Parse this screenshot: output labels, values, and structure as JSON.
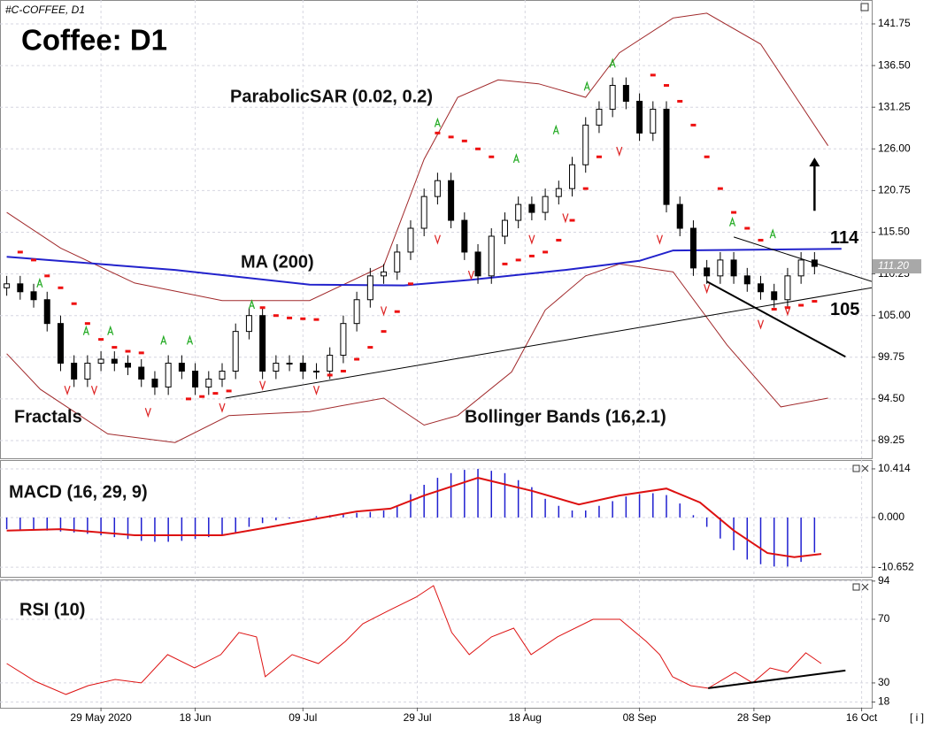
{
  "ui": {
    "info": "[ i ]"
  },
  "chart_data": [
    {
      "type": "candlestick",
      "symbol": "#C-COFFEE, D1",
      "title": "Coffee: D1",
      "xlim": [
        -1,
        128.5
      ],
      "ylim": [
        87.02,
        144.76
      ],
      "grid": true,
      "yticks": [
        {
          "value": 141.75,
          "label": "141.75"
        },
        {
          "value": 136.5,
          "label": "136.50"
        },
        {
          "value": 131.25,
          "label": "131.25"
        },
        {
          "value": 126,
          "label": "126.00"
        },
        {
          "value": 120.75,
          "label": "120.75"
        },
        {
          "value": 115.5,
          "label": "115.50"
        },
        {
          "value": 110.25,
          "label": "110.25"
        },
        {
          "value": 105,
          "label": "105.00"
        },
        {
          "value": 99.75,
          "label": "99.75"
        },
        {
          "value": 94.5,
          "label": "94.50"
        },
        {
          "value": 89.25,
          "label": "89.25"
        }
      ],
      "last_price": {
        "value": 111.2,
        "label": "111.20"
      },
      "x": [
        0,
        2,
        4,
        6,
        8,
        10,
        12,
        14,
        16,
        18,
        20,
        22,
        24,
        26,
        28,
        30,
        32,
        34,
        36,
        38,
        40,
        42,
        44,
        46,
        48,
        50,
        52,
        54,
        56,
        58,
        60,
        62,
        64,
        66,
        68,
        70,
        72,
        74,
        76,
        78,
        80,
        82,
        84,
        86,
        88,
        90,
        92,
        94,
        96,
        98,
        100,
        102,
        104,
        106,
        108,
        110,
        112,
        114,
        116,
        118,
        120
      ],
      "open": [
        108.5,
        109,
        108,
        107,
        104,
        99,
        97,
        99,
        99.5,
        99,
        98.5,
        97,
        96,
        99,
        98,
        96,
        97,
        98,
        103,
        105,
        98,
        99,
        99,
        98,
        98,
        100,
        104,
        107,
        110,
        110.5,
        113,
        116,
        120,
        122,
        117,
        113,
        110,
        115,
        117,
        119,
        118,
        120,
        121,
        124,
        129,
        131,
        134,
        132,
        128,
        131,
        119,
        116,
        111,
        110,
        112,
        110,
        109,
        108,
        107,
        110,
        112
      ],
      "high": [
        110,
        110,
        109,
        108,
        105,
        100,
        100,
        100.5,
        100.5,
        100,
        99.5,
        98,
        100,
        100,
        99,
        98,
        99,
        104,
        106,
        106,
        100,
        100,
        100,
        99,
        101,
        105,
        108,
        111,
        111.5,
        114,
        117,
        121,
        123,
        123,
        118,
        114,
        116,
        118,
        120,
        120,
        121,
        122,
        125,
        130,
        132,
        135,
        135,
        133,
        132,
        132,
        120,
        117,
        112,
        113,
        113,
        111,
        110,
        109,
        111,
        113,
        113
      ],
      "low": [
        107.5,
        107,
        106,
        103,
        98,
        96,
        96,
        98,
        98,
        97.5,
        96,
        95,
        95,
        97,
        95,
        95,
        96,
        97,
        102,
        97,
        97,
        98,
        97,
        97,
        97,
        99,
        103,
        106,
        109,
        109.5,
        112,
        115,
        119,
        116,
        112,
        109,
        109,
        114,
        116,
        117,
        117,
        119,
        120,
        123,
        128,
        130,
        131,
        127,
        127,
        118,
        115,
        110,
        109,
        109,
        109,
        108,
        107,
        106,
        106,
        109,
        110.2
      ],
      "close": [
        109,
        108,
        107,
        104,
        99,
        97,
        99,
        99.5,
        99,
        98.5,
        97,
        96,
        99,
        98,
        96,
        97,
        98,
        103,
        105,
        98,
        99,
        99,
        98,
        98,
        100,
        104,
        107,
        110,
        110.5,
        113,
        116,
        120,
        122,
        117,
        113,
        110,
        115,
        117,
        119,
        118,
        120,
        121,
        124,
        129,
        131,
        134,
        132,
        128,
        131,
        119,
        116,
        111,
        110,
        112,
        110,
        109,
        108,
        107,
        110,
        112,
        111.2
      ],
      "ma": {
        "name": "MA (200)",
        "color": "#2222cc",
        "x": [
          0,
          25,
          45,
          59,
          69,
          83,
          94,
          99,
          124
        ],
        "values": [
          112.4,
          110.75,
          108.9,
          108.8,
          109.5,
          110.75,
          111.9,
          113.2,
          113.4
        ]
      },
      "bollinger": {
        "name": "Bollinger Bands (16,2.1)",
        "color": "#a0282a",
        "upper": {
          "x": [
            0,
            8,
            19,
            32,
            45,
            56,
            62,
            67,
            73,
            79,
            86,
            91,
            99,
            104,
            112,
            122
          ],
          "values": [
            118,
            113.5,
            109.1,
            106.9,
            106.9,
            111.3,
            124.7,
            132.5,
            134.7,
            134.2,
            132.5,
            138.1,
            142.5,
            143.1,
            139.2,
            126.4
          ]
        },
        "lower": {
          "x": [
            0,
            5,
            15,
            25,
            33,
            45,
            56,
            62,
            67,
            75,
            80,
            86,
            91,
            99,
            107,
            115,
            122
          ],
          "values": [
            100.2,
            95.7,
            90.1,
            89,
            92.4,
            92.9,
            94.6,
            91.2,
            92.4,
            97.9,
            105.7,
            110,
            111.5,
            110.5,
            101.3,
            93.5,
            94.6
          ]
        }
      },
      "sar": {
        "name": "ParabolicSAR (0.02, 0.2)",
        "color": "#ee1111",
        "x": [
          2,
          4,
          6,
          8,
          10,
          12,
          14,
          16,
          18,
          20,
          27,
          29,
          31,
          33,
          38,
          40,
          42,
          44,
          46,
          48,
          50,
          52,
          54,
          56,
          58,
          60,
          64,
          66,
          68,
          70,
          72,
          74,
          76,
          78,
          80,
          82,
          84,
          86,
          88,
          96,
          98,
          100,
          102,
          104,
          106,
          108,
          110,
          112,
          114,
          116,
          118,
          120
        ],
        "values": [
          113,
          112,
          110,
          108.5,
          106.5,
          104,
          102,
          101,
          100.5,
          100.3,
          94.5,
          94.8,
          95.2,
          95.5,
          106,
          105,
          104.7,
          104.6,
          104.5,
          97.5,
          98,
          99.5,
          101,
          103,
          105.5,
          109,
          128,
          127.5,
          127,
          126,
          125,
          111.5,
          112,
          112.5,
          113,
          114.5,
          117,
          121,
          125,
          135.3,
          134,
          132,
          129,
          125,
          121,
          118,
          116,
          114.5,
          105.8,
          106,
          106.3,
          106.8
        ]
      },
      "fractals": {
        "name": "Fractals",
        "up": {
          "color": "#22aa22",
          "x": [
            4.9,
            11.8,
            15.4,
            23.3,
            27.2,
            36.4,
            64,
            75.7,
            81.6,
            86.2,
            90,
            107.8,
            113.8
          ],
          "values": [
            109,
            103,
            103,
            101.8,
            101.8,
            106.3,
            129.2,
            124.7,
            128.3,
            133.8,
            136.7,
            116.7,
            115.2
          ]
        },
        "down": {
          "color": "#dd2222",
          "x": [
            9,
            13,
            21,
            32,
            38,
            46,
            56,
            64,
            69,
            78,
            83,
            91,
            97,
            104,
            112,
            116
          ],
          "values": [
            95.7,
            95.7,
            92.9,
            93.5,
            96.3,
            95.7,
            105.7,
            114.7,
            110.2,
            114.7,
            117.4,
            125.8,
            114.7,
            108.5,
            104,
            105.7
          ]
        }
      },
      "trendlines": [
        {
          "x": [
            32.5,
            128.5
          ],
          "values": [
            94.6,
            108.5
          ],
          "width": 1
        },
        {
          "x": [
            108,
            128.5
          ],
          "values": [
            114.9,
            109.3
          ],
          "width": 1
        },
        {
          "x": [
            104,
            124.6
          ],
          "values": [
            109.3,
            99.8
          ],
          "width": 2
        }
      ],
      "arrow": {
        "x": [
          120,
          120
        ],
        "values": [
          118.2,
          124.9
        ]
      },
      "levels": [
        114,
        105
      ]
    },
    {
      "type": "macd",
      "name": "MACD (16, 29, 9)",
      "xlim": [
        -1,
        128.5
      ],
      "ylim": [
        -12.7,
        12.3
      ],
      "yticks": [
        10.414,
        {
          "value": 0,
          "label": "0.000"
        },
        -10.652
      ],
      "x": [
        0,
        2,
        4,
        6,
        8,
        10,
        12,
        14,
        16,
        18,
        20,
        22,
        24,
        26,
        28,
        30,
        32,
        34,
        36,
        38,
        40,
        42,
        44,
        46,
        48,
        50,
        52,
        54,
        56,
        58,
        60,
        62,
        64,
        66,
        68,
        70,
        72,
        74,
        76,
        78,
        80,
        82,
        84,
        86,
        88,
        90,
        92,
        94,
        96,
        98,
        100,
        102,
        104,
        106,
        108,
        110,
        112,
        114,
        116,
        118,
        120
      ],
      "histogram": {
        "color": "#1f1fd0",
        "values": [
          -2.5,
          -2.6,
          -2.7,
          -2.8,
          -3,
          -3.2,
          -3.5,
          -3.8,
          -4.2,
          -4.6,
          -5,
          -5.2,
          -5.2,
          -5,
          -4.6,
          -4.2,
          -3.8,
          -3.2,
          -2,
          -1.2,
          -0.6,
          -0.2,
          0,
          0.3,
          0.5,
          0.8,
          1,
          1.2,
          1.5,
          2.5,
          5,
          7,
          8.5,
          9.5,
          10.2,
          10.4,
          10,
          9.5,
          8,
          6.5,
          4,
          2.5,
          1.5,
          1.5,
          2.5,
          3.5,
          4.5,
          5,
          5.2,
          4.8,
          3,
          0.5,
          -2,
          -4.5,
          -7,
          -9,
          -10,
          -10.5,
          -10.5,
          -9.5,
          -7.5
        ]
      },
      "signal": {
        "color": "#dd1111",
        "x": [
          0,
          8,
          19,
          32,
          38,
          52,
          57,
          62,
          70,
          78,
          85,
          91,
          98,
          103,
          108,
          113,
          117,
          121
        ],
        "values": [
          -2.8,
          -2.5,
          -3.8,
          -3.8,
          -2.3,
          1.3,
          1.9,
          4.7,
          8.5,
          5.7,
          2.8,
          4.7,
          6.2,
          3.2,
          -2.8,
          -7.6,
          -8.5,
          -7.8
        ]
      }
    },
    {
      "type": "line",
      "name": "RSI (10)",
      "xlim": [
        -1,
        128.5
      ],
      "ylim": [
        14.4,
        95
      ],
      "color": "#dd1111",
      "yticks": [
        94,
        70,
        30,
        18
      ],
      "xticks": [
        {
          "value": 14,
          "label": "29 May 2020"
        },
        {
          "value": 28,
          "label": "18 Jun"
        },
        {
          "value": 44,
          "label": "09 Jul"
        },
        {
          "value": 61,
          "label": "29 Jul"
        },
        {
          "value": 77,
          "label": "18 Aug"
        },
        {
          "value": 94,
          "label": "08 Sep"
        },
        {
          "value": 111,
          "label": "28 Sep"
        },
        {
          "value": 127,
          "label": "16 Oct"
        }
      ],
      "x": [
        0,
        4.2,
        8.8,
        12.1,
        16.1,
        20,
        23.9,
        27.9,
        31.8,
        34.5,
        37.1,
        38.4,
        42.4,
        46.3,
        50.3,
        52.9,
        56.8,
        60.8,
        63.4,
        66.1,
        68.7,
        72,
        75.3,
        77.9,
        81.8,
        87.1,
        91.1,
        95,
        97,
        98.9,
        101.6,
        104.2,
        108.2,
        110.8,
        113.4,
        116,
        118.7,
        121
      ],
      "values": [
        42.2,
        31.1,
        22.8,
        28.3,
        32.2,
        30,
        47.8,
        39.4,
        47.8,
        61.7,
        58.9,
        33.9,
        47.8,
        42.2,
        56.1,
        67.2,
        75.6,
        83.9,
        91.1,
        61.7,
        47.8,
        58.9,
        64.4,
        47.8,
        58.9,
        70,
        70,
        56.1,
        47.8,
        33.9,
        28.3,
        26.7,
        36.7,
        30,
        39.4,
        36.7,
        48.9,
        42.2
      ],
      "trendline": {
        "x": [
          104.2,
          124.6
        ],
        "values": [
          26.7,
          37.8
        ]
      }
    }
  ]
}
